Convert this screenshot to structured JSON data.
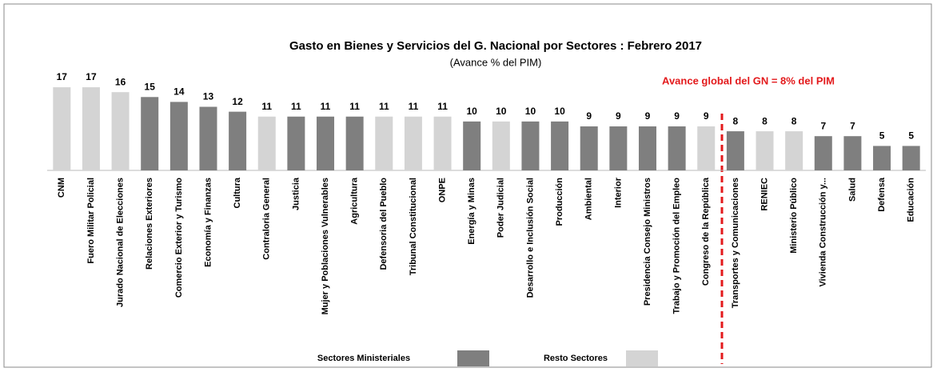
{
  "chart_data": {
    "type": "bar",
    "title": "Gasto en Bienes y Servicios del G. Nacional por Sectores : Febrero  2017",
    "subtitle": "(Avance % del PIM)",
    "annotation": "Avance global del GN = 8% del PIM",
    "categories": [
      "CNM",
      "Fuero Militar Policial",
      "Jurado Nacional de Elecciones",
      "Relaciones Exteriores",
      "Comercio Exterior y Turismo",
      "Economía y Finanzas",
      "Cultura",
      "Contraloria General",
      "Justicia",
      "Mujer y Poblaciones Vulnerables",
      "Agricultura",
      "Defensoria del Pueblo",
      "Tribunal Constitucional",
      "ONPE",
      "Energía y Minas",
      "Poder Judicial",
      "Desarrollo e Inclusión Social",
      "Producción",
      "Ambiental",
      "Interior",
      "Presidencia Consejo Ministros",
      "Trabajo y Promoción del Empleo",
      "Congreso de la República",
      "Transportes y Comunicaciones",
      "RENIEC",
      "Ministerio Público",
      "Vivienda Construcción y...",
      "Salud",
      "Defensa",
      "Educación"
    ],
    "series": [
      {
        "name": "Sectores Ministeriales",
        "color": "#7f7f7f",
        "values": [
          null,
          null,
          null,
          15,
          14,
          13,
          12,
          null,
          11,
          11,
          11,
          null,
          null,
          null,
          10,
          null,
          10,
          10,
          9,
          9,
          9,
          9,
          null,
          8,
          null,
          null,
          7,
          7,
          5,
          5
        ]
      },
      {
        "name": "Resto Sectores",
        "color": "#d4d4d4",
        "values": [
          17,
          17,
          16,
          null,
          null,
          null,
          null,
          11,
          null,
          null,
          null,
          11,
          11,
          11,
          null,
          10,
          null,
          null,
          null,
          null,
          null,
          null,
          9,
          null,
          8,
          8,
          null,
          null,
          null,
          null
        ]
      }
    ],
    "ylim": [
      0,
      17.5
    ]
  }
}
